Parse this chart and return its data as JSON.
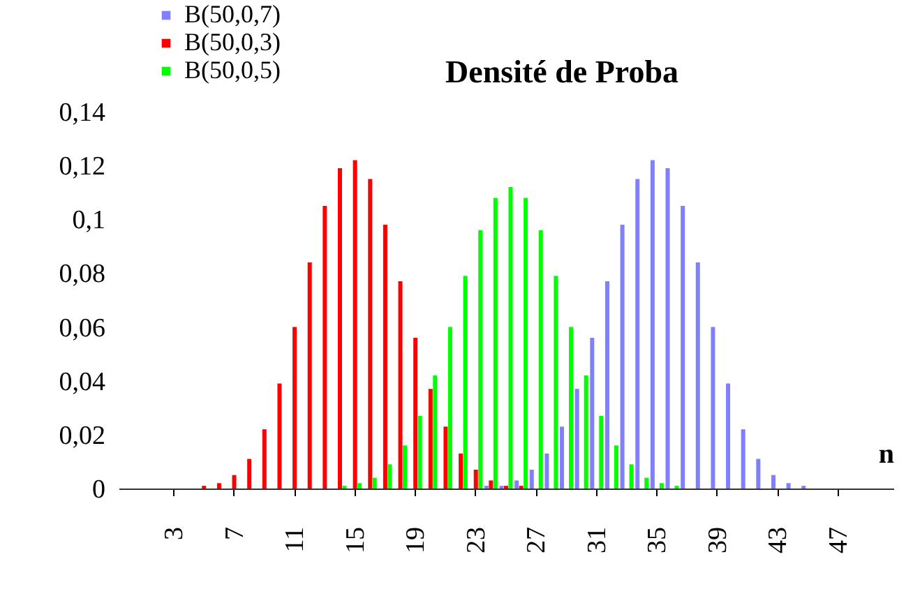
{
  "chart_data": {
    "type": "bar",
    "title": "Densité de Proba",
    "xlabel": "n",
    "categories": [
      null,
      null,
      null,
      "3",
      null,
      null,
      null,
      "7",
      null,
      null,
      null,
      "11",
      null,
      null,
      null,
      "15",
      null,
      null,
      null,
      "19",
      null,
      null,
      null,
      "23",
      null,
      null,
      null,
      "27",
      null,
      null,
      null,
      "31",
      null,
      null,
      null,
      "35",
      null,
      null,
      null,
      "39",
      null,
      null,
      null,
      "43",
      null,
      null,
      null,
      "47",
      null,
      null,
      null
    ],
    "series": [
      {
        "name": "B(50,0,7)",
        "color": "#8080ff",
        "values": [
          0,
          0,
          0,
          0,
          0,
          0,
          0,
          0,
          0,
          0,
          0,
          0,
          0,
          0,
          0,
          0,
          0,
          0,
          0,
          0,
          0,
          0,
          0,
          0,
          0.001,
          0.001,
          0.003,
          0.007,
          0.013,
          0.023,
          0.037,
          0.056,
          0.077,
          0.098,
          0.115,
          0.122,
          0.119,
          0.105,
          0.084,
          0.06,
          0.039,
          0.022,
          0.011,
          0.005,
          0.002,
          0.001,
          0,
          0,
          0,
          0,
          0
        ]
      },
      {
        "name": "B(50,0,3)",
        "color": "#ff0000",
        "values": [
          0,
          0,
          0,
          0,
          0,
          0.001,
          0.002,
          0.005,
          0.011,
          0.022,
          0.039,
          0.06,
          0.084,
          0.105,
          0.119,
          0.122,
          0.115,
          0.098,
          0.077,
          0.056,
          0.037,
          0.023,
          0.013,
          0.007,
          0.003,
          0.001,
          0.001,
          0,
          0,
          0,
          0,
          0,
          0,
          0,
          0,
          0,
          0,
          0,
          0,
          0,
          0,
          0,
          0,
          0,
          0,
          0,
          0,
          0,
          0,
          0,
          0
        ]
      },
      {
        "name": "B(50,0,5)",
        "color": "#00ff00",
        "values": [
          0,
          0,
          0,
          0,
          0,
          0,
          0,
          0,
          0,
          0,
          0,
          0,
          0,
          0,
          0.001,
          0.002,
          0.004,
          0.009,
          0.016,
          0.027,
          0.042,
          0.06,
          0.079,
          0.096,
          0.108,
          0.112,
          0.108,
          0.096,
          0.079,
          0.06,
          0.042,
          0.027,
          0.016,
          0.009,
          0.004,
          0.002,
          0.001,
          0,
          0,
          0,
          0,
          0,
          0,
          0,
          0,
          0,
          0,
          0,
          0,
          0,
          0
        ]
      }
    ],
    "ylim": [
      0,
      0.14
    ],
    "yticks": [
      {
        "value": 0,
        "label": "0"
      },
      {
        "value": 0.02,
        "label": "0,02"
      },
      {
        "value": 0.04,
        "label": "0,04"
      },
      {
        "value": 0.06,
        "label": "0,06"
      },
      {
        "value": 0.08,
        "label": "0,08"
      },
      {
        "value": 0.1,
        "label": "0,1"
      },
      {
        "value": 0.12,
        "label": "0,12"
      },
      {
        "value": 0.14,
        "label": "0,14"
      }
    ],
    "grid": false,
    "legend": "top left"
  }
}
